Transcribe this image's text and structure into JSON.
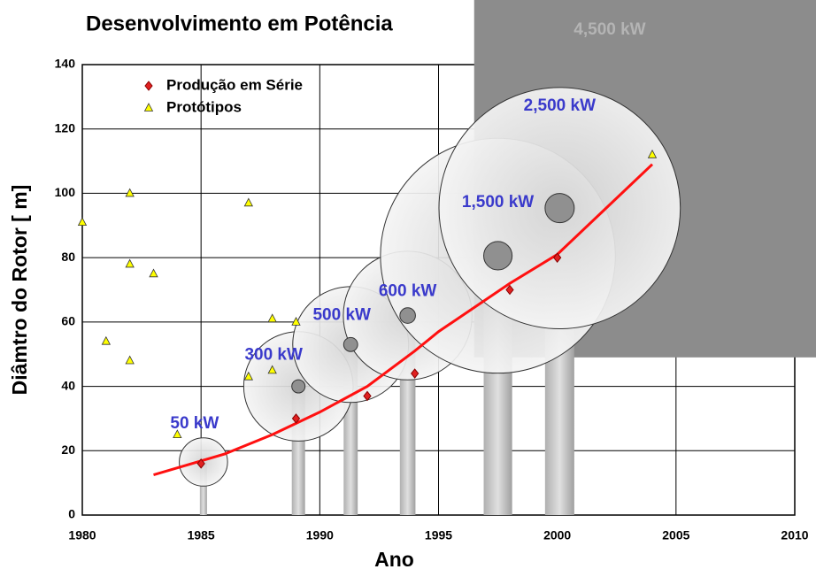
{
  "chart_data": {
    "type": "scatter",
    "title": "Desenvolvimento em Potência",
    "x_label": "Ano",
    "y_label": "Diâmtro do Rotor [ m]",
    "xlim": [
      1980,
      2010
    ],
    "xticks": [
      1980,
      1985,
      1990,
      1995,
      2000,
      2005,
      2010
    ],
    "ylim": [
      0,
      140
    ],
    "yticks": [
      0,
      20,
      40,
      60,
      80,
      100,
      120,
      140
    ],
    "grid": true,
    "legend": "upper left",
    "series": [
      {
        "name": "Produção em Série",
        "color": "#e02020",
        "marker": "diamond",
        "x": [
          1985,
          1989,
          1992,
          1994,
          1998,
          2000
        ],
        "values": [
          16,
          30,
          37,
          44,
          70,
          80
        ]
      },
      {
        "name": "Protótipos",
        "color": "#ffff00",
        "marker": "triangle",
        "x": [
          1980,
          1981,
          1982,
          1982,
          1982,
          1983,
          1984,
          1987,
          1987,
          1988,
          1988,
          1989,
          2004
        ],
        "values": [
          91,
          54,
          100,
          78,
          48,
          75,
          25,
          97,
          43,
          61,
          45,
          60,
          112
        ]
      }
    ],
    "trend": {
      "color": "#ff1010",
      "x": [
        1983,
        1986,
        1988,
        1990,
        1992,
        1994,
        1995,
        1998,
        2000,
        2002,
        2004
      ],
      "values": [
        12.5,
        19,
        25,
        32,
        40,
        51,
        57,
        72,
        81,
        95,
        109
      ]
    },
    "rotors": [
      {
        "label": "50 kW",
        "x": 1985.1,
        "y": 16.5,
        "diameter": 15
      },
      {
        "label": "300 kW",
        "x": 1989.1,
        "y": 40,
        "diameter": 34
      },
      {
        "label": "500 kW",
        "x": 1991.3,
        "y": 53,
        "diameter": 36
      },
      {
        "label": "600 kW",
        "x": 1993.7,
        "y": 62,
        "diameter": 40
      },
      {
        "label": "1,500 kW",
        "x": 1997.5,
        "y": 80.6,
        "diameter": 73
      },
      {
        "label": "2,500 kW",
        "x": 2000.1,
        "y": 95.4,
        "diameter": 75
      }
    ],
    "box": {
      "label": "4,500 kW",
      "x": [
        1996.5,
        2010.9
      ],
      "y": 49
    }
  }
}
